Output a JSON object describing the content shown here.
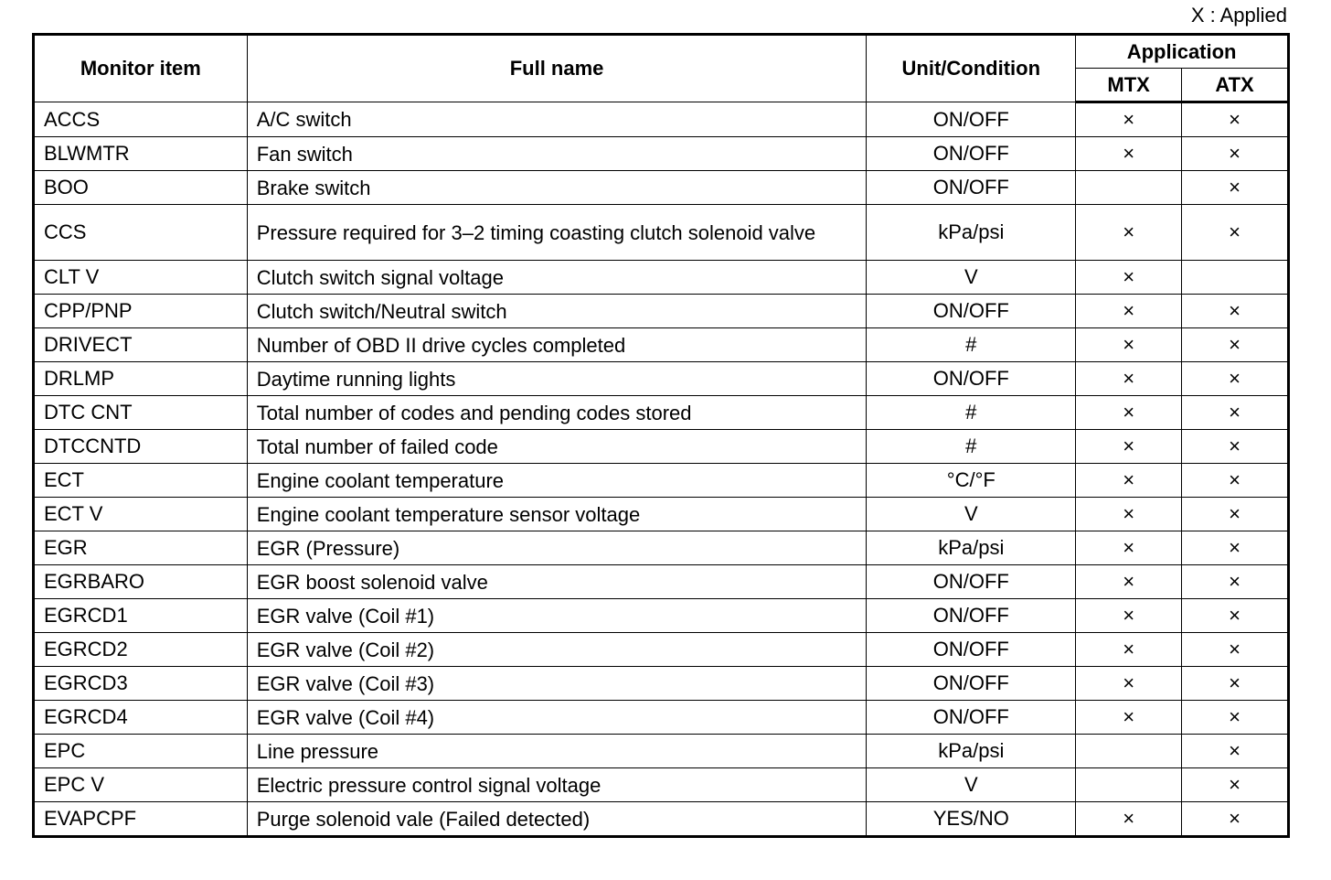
{
  "legend": "X : Applied",
  "headers": {
    "monitor_item": "Monitor item",
    "full_name": "Full name",
    "unit": "Unit/Condition",
    "application": "Application",
    "mtx": "MTX",
    "atx": "ATX"
  },
  "mark": "×",
  "rows": [
    {
      "item": "ACCS",
      "name": "A/C switch",
      "unit": "ON/OFF",
      "mtx": "×",
      "atx": "×"
    },
    {
      "item": "BLWMTR",
      "name": "Fan switch",
      "unit": "ON/OFF",
      "mtx": "×",
      "atx": "×"
    },
    {
      "item": "BOO",
      "name": "Brake switch",
      "unit": "ON/OFF",
      "mtx": "",
      "atx": "×"
    },
    {
      "item": "CCS",
      "name": "Pressure required for 3–2 timing coasting clutch solenoid valve",
      "unit": "kPa/psi",
      "mtx": "×",
      "atx": "×"
    },
    {
      "item": "CLT V",
      "name": "Clutch switch signal voltage",
      "unit": "V",
      "mtx": "×",
      "atx": ""
    },
    {
      "item": "CPP/PNP",
      "name": "Clutch switch/Neutral switch",
      "unit": "ON/OFF",
      "mtx": "×",
      "atx": "×"
    },
    {
      "item": "DRIVECT",
      "name": "Number of OBD II drive cycles completed",
      "unit": "#",
      "mtx": "×",
      "atx": "×"
    },
    {
      "item": "DRLMP",
      "name": "Daytime running lights",
      "unit": "ON/OFF",
      "mtx": "×",
      "atx": "×"
    },
    {
      "item": "DTC CNT",
      "name": "Total number of codes and pending codes stored",
      "unit": "#",
      "mtx": "×",
      "atx": "×"
    },
    {
      "item": "DTCCNTD",
      "name": "Total number of failed code",
      "unit": "#",
      "mtx": "×",
      "atx": "×"
    },
    {
      "item": "ECT",
      "name": "Engine coolant temperature",
      "unit": "°C/°F",
      "mtx": "×",
      "atx": "×"
    },
    {
      "item": "ECT V",
      "name": "Engine coolant temperature sensor voltage",
      "unit": "V",
      "mtx": "×",
      "atx": "×"
    },
    {
      "item": "EGR",
      "name": "EGR (Pressure)",
      "unit": "kPa/psi",
      "mtx": "×",
      "atx": "×"
    },
    {
      "item": "EGRBARO",
      "name": "EGR boost solenoid valve",
      "unit": "ON/OFF",
      "mtx": "×",
      "atx": "×"
    },
    {
      "item": "EGRCD1",
      "name": "EGR valve (Coil #1)",
      "unit": "ON/OFF",
      "mtx": "×",
      "atx": "×"
    },
    {
      "item": "EGRCD2",
      "name": "EGR valve (Coil #2)",
      "unit": "ON/OFF",
      "mtx": "×",
      "atx": "×"
    },
    {
      "item": "EGRCD3",
      "name": "EGR valve (Coil #3)",
      "unit": "ON/OFF",
      "mtx": "×",
      "atx": "×"
    },
    {
      "item": "EGRCD4",
      "name": "EGR valve (Coil #4)",
      "unit": "ON/OFF",
      "mtx": "×",
      "atx": "×"
    },
    {
      "item": "EPC",
      "name": "Line pressure",
      "unit": "kPa/psi",
      "mtx": "",
      "atx": "×"
    },
    {
      "item": "EPC V",
      "name": "Electric pressure control signal voltage",
      "unit": "V",
      "mtx": "",
      "atx": "×"
    },
    {
      "item": "EVAPCPF",
      "name": "Purge solenoid vale (Failed detected)",
      "unit": "YES/NO",
      "mtx": "×",
      "atx": "×"
    }
  ]
}
